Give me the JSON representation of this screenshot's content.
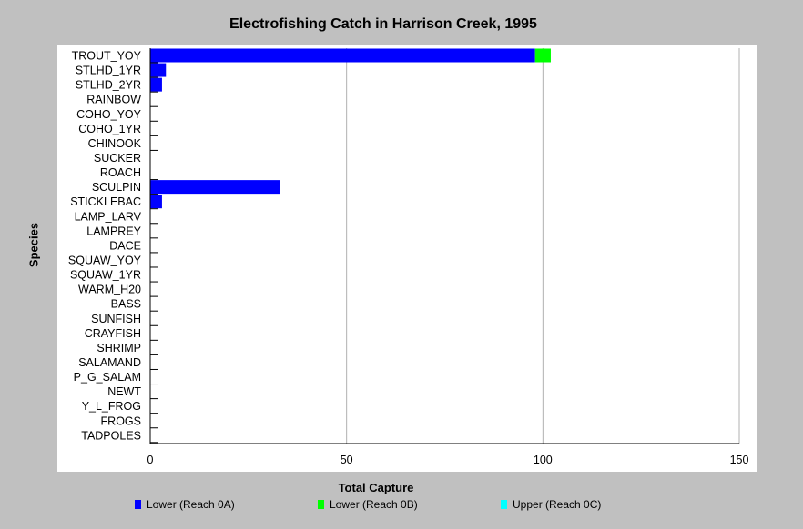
{
  "chart_data": {
    "type": "bar",
    "orientation": "horizontal",
    "stacked": true,
    "title": "Electrofishing Catch in Harrison Creek, 1995",
    "xlabel": "Total Capture",
    "ylabel": "Species",
    "xlim": [
      0,
      150
    ],
    "xticks": [
      0,
      50,
      100,
      150
    ],
    "grid": "vertical",
    "legend_position": "bottom",
    "categories": [
      "TROUT_YOY",
      "STLHD_1YR",
      "STLHD_2YR",
      "RAINBOW",
      "COHO_YOY",
      "COHO_1YR",
      "CHINOOK",
      "SUCKER",
      "ROACH",
      "SCULPIN",
      "STICKLEBAC",
      "LAMP_LARV",
      "LAMPREY",
      "DACE",
      "SQUAW_YOY",
      "SQUAW_1YR",
      "WARM_H20",
      "BASS",
      "SUNFISH",
      "CRAYFISH",
      "SHRIMP",
      "SALAMAND",
      "P_G_SALAM",
      "NEWT",
      "Y_L_FROG",
      "FROGS",
      "TADPOLES"
    ],
    "series": [
      {
        "name": "Lower (Reach 0A)",
        "color": "#0000ff",
        "values": [
          98,
          4,
          3,
          0,
          0,
          0,
          0,
          0,
          0,
          33,
          3,
          0,
          0,
          0,
          0,
          0,
          0,
          0,
          0,
          0,
          0,
          0,
          0,
          0,
          0,
          0,
          0
        ]
      },
      {
        "name": "Lower (Reach 0B)",
        "color": "#00ff00",
        "values": [
          4,
          0,
          0,
          0,
          0,
          0,
          0,
          0,
          0,
          0,
          0,
          0,
          0,
          0,
          0,
          0,
          0,
          0,
          0,
          0,
          0,
          0,
          0,
          0,
          0,
          0,
          0
        ]
      },
      {
        "name": "Upper (Reach 0C)",
        "color": "#00ffff",
        "values": [
          0,
          0,
          0,
          0,
          0,
          0,
          0,
          0,
          0,
          0,
          0,
          0,
          0,
          0,
          0,
          0,
          0,
          0,
          0,
          0,
          0,
          0,
          0,
          0,
          0,
          0,
          0
        ]
      }
    ]
  }
}
